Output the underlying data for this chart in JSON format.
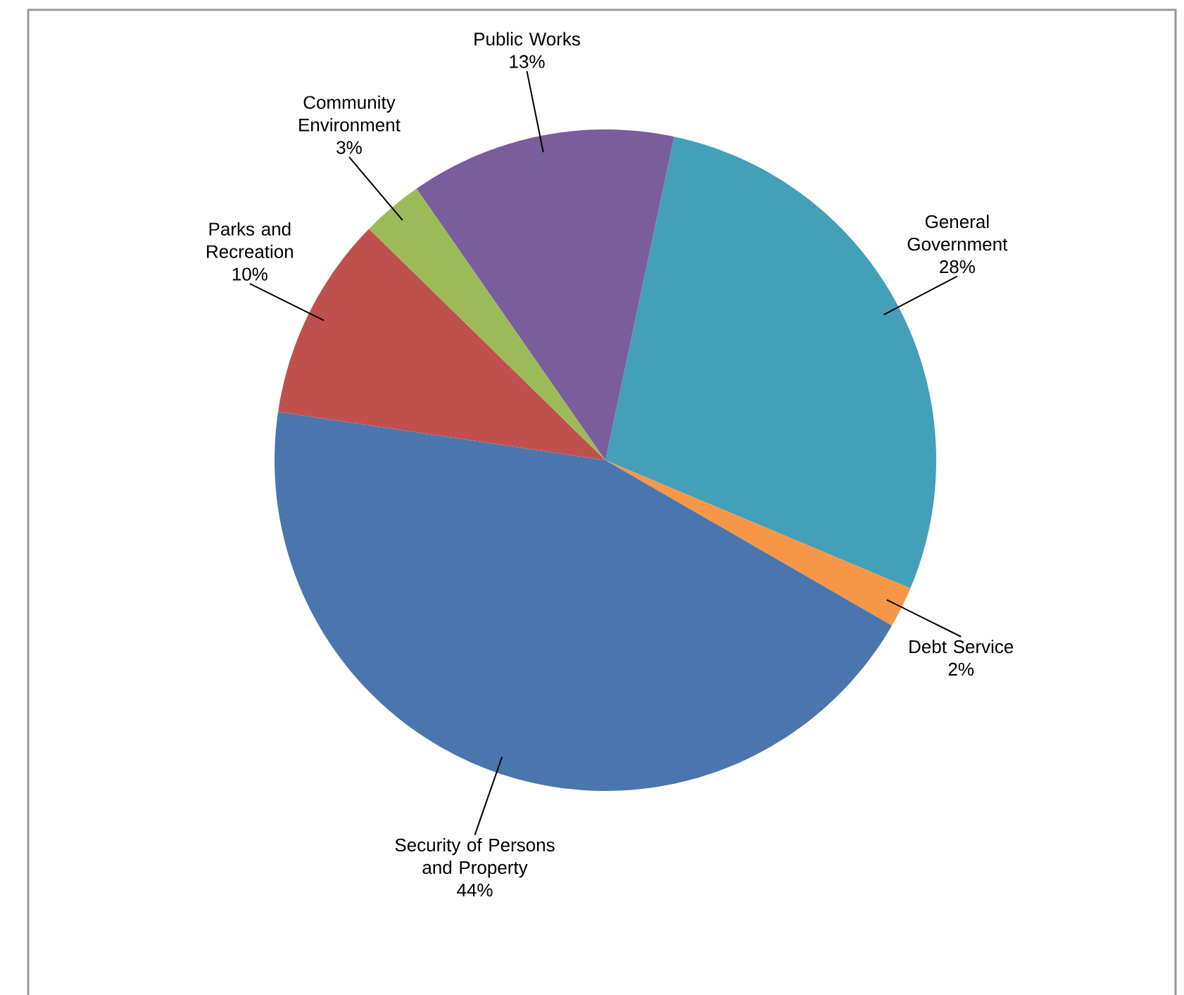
{
  "chart_data": {
    "type": "pie",
    "categories": [
      "General Government",
      "Debt Service",
      "Security of Persons and Property",
      "Parks and Recreation",
      "Community Environment",
      "Public Works"
    ],
    "values": [
      28,
      2,
      44,
      10,
      3,
      13
    ],
    "value_labels": [
      "28%",
      "2%",
      "44%",
      "10%",
      "3%",
      "13%"
    ],
    "colors": [
      "#43a0b8",
      "#f79646",
      "#4a76ad",
      "#c0504d",
      "#9bbb59",
      "#7a5d9c"
    ]
  }
}
